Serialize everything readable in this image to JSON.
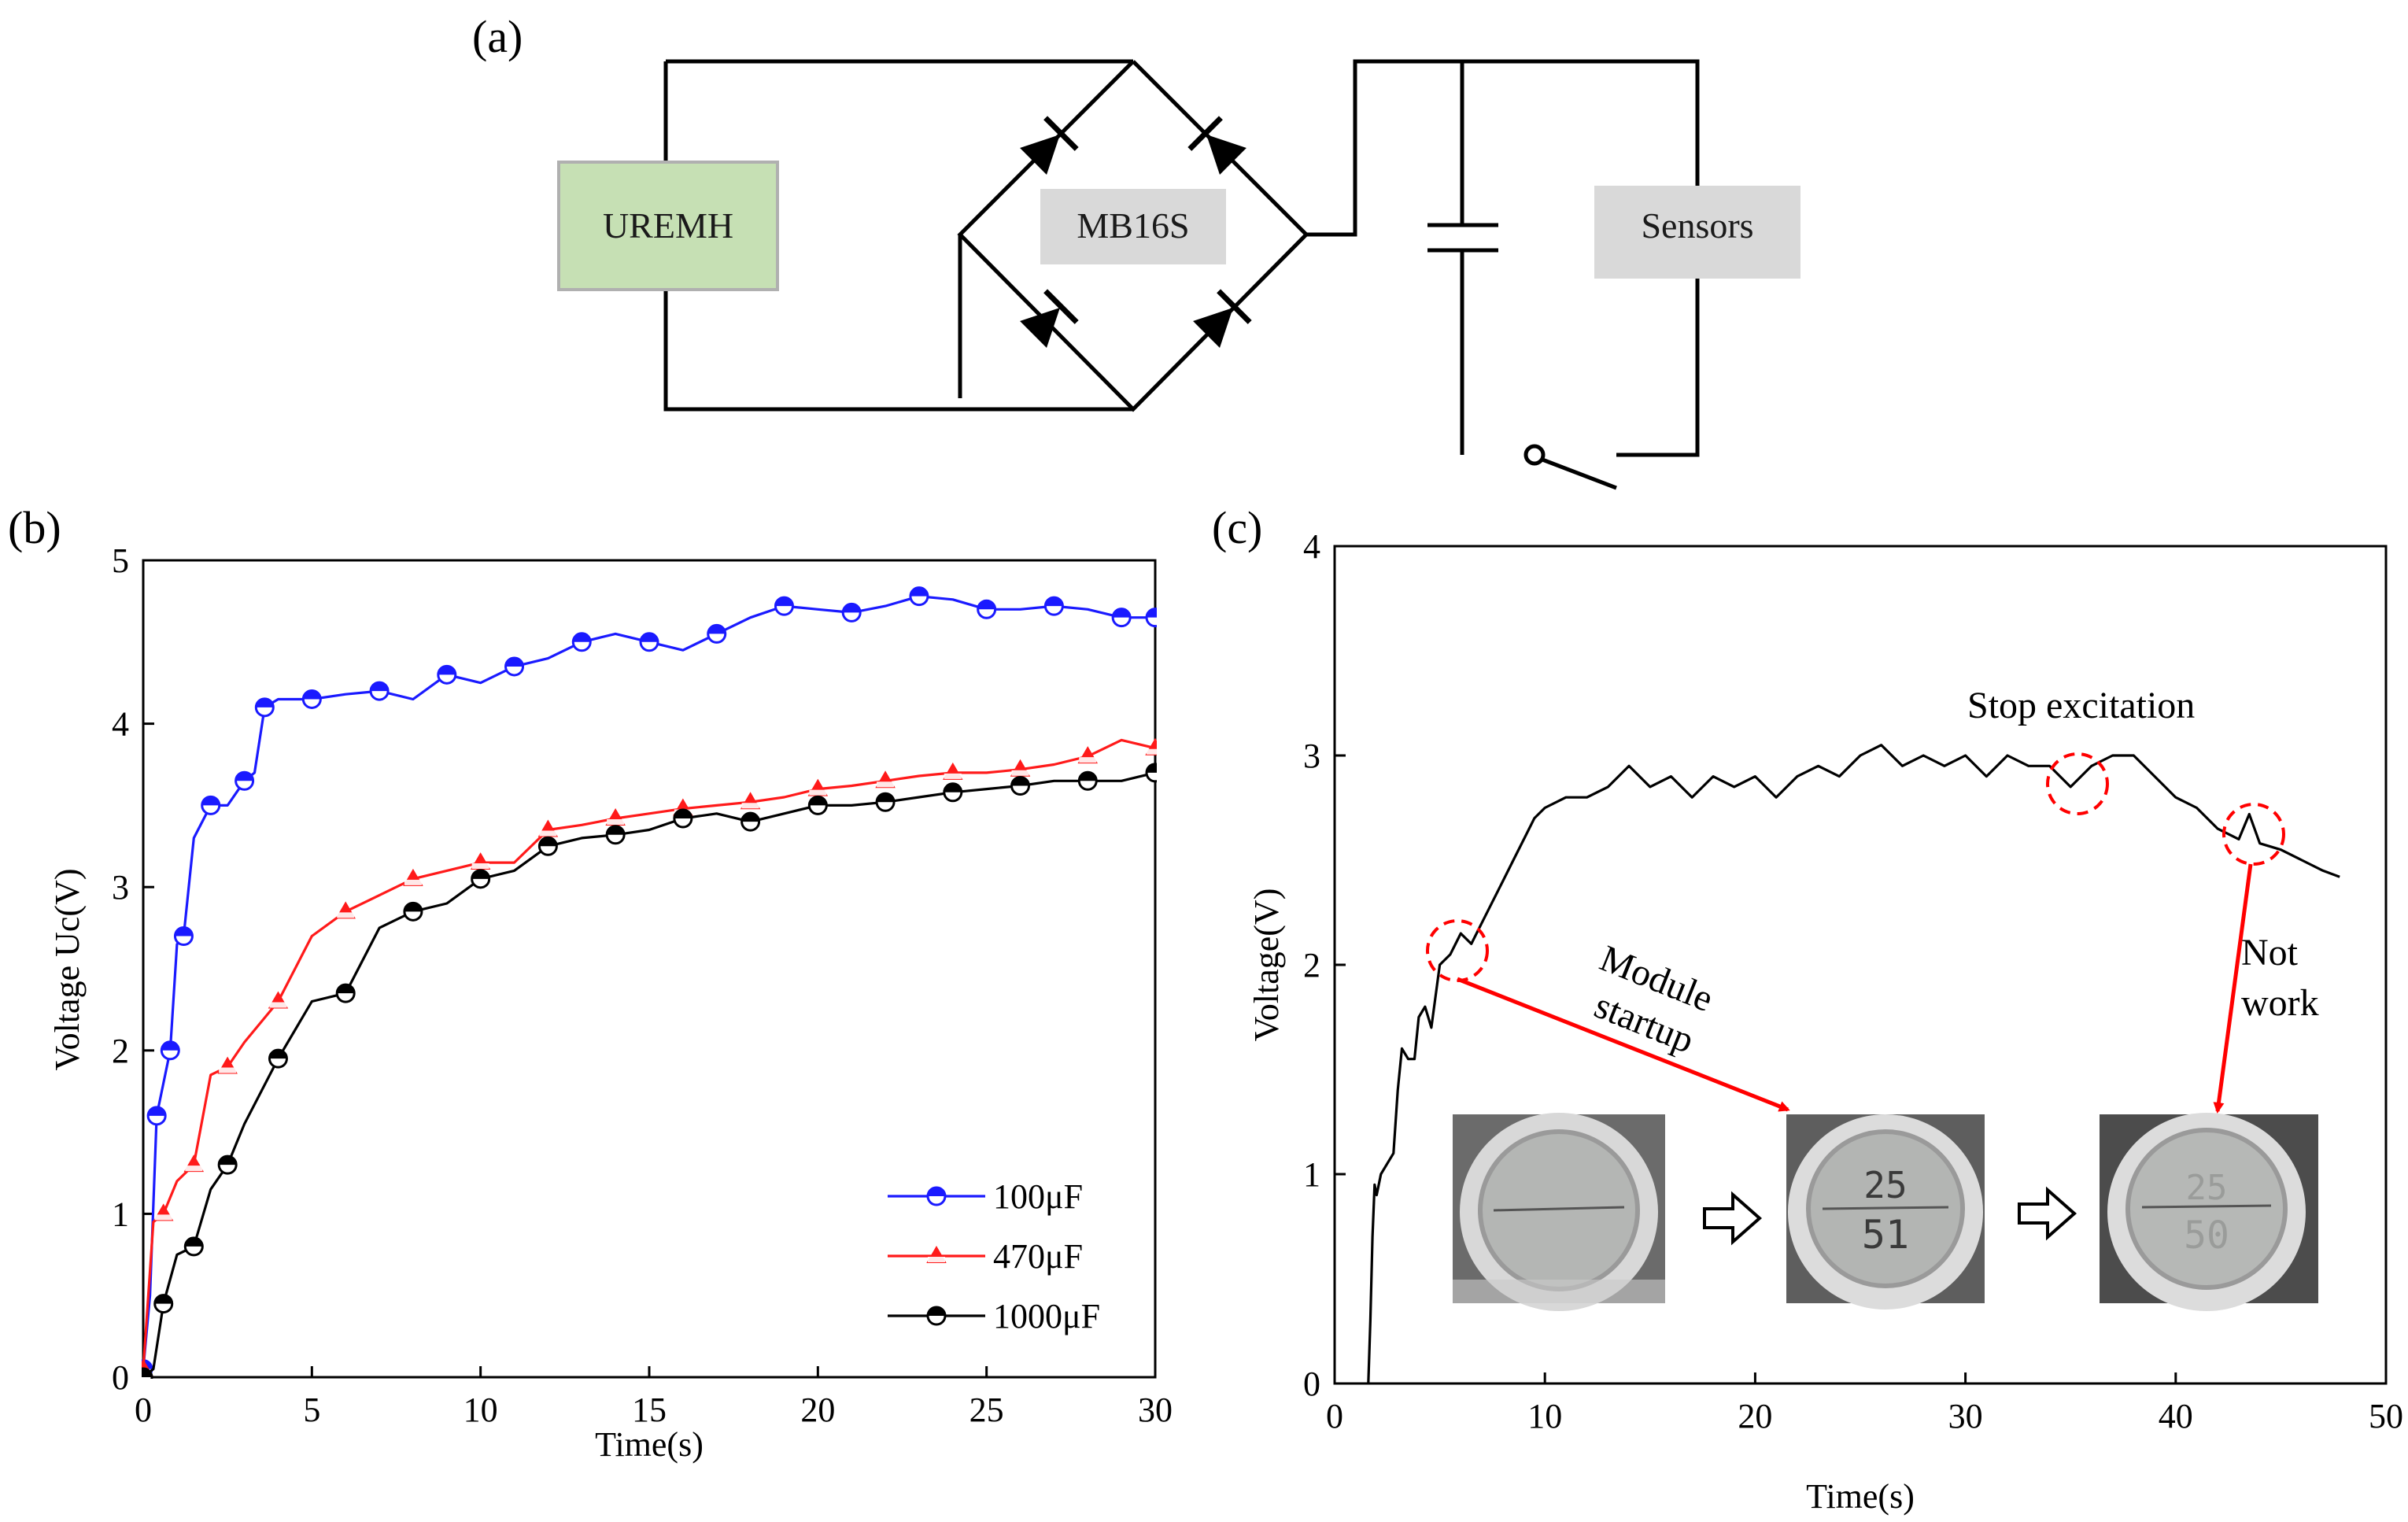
{
  "panels": {
    "a": {
      "label": "(a)",
      "components": {
        "harvester": "UREMH",
        "rectifier": "MB16S",
        "load": "Sensors"
      },
      "colors": {
        "harvester_fill": "#c6e0b4",
        "rectifier_fill": "#d9d9d9",
        "load_fill": "#d9d9d9"
      }
    },
    "b": {
      "label": "(b)"
    },
    "c": {
      "label": "(c)"
    }
  },
  "chart_data": [
    {
      "id": "b",
      "type": "line",
      "xlabel": "Time(s)",
      "ylabel": "Voltage Uc(V)",
      "xlim": [
        0,
        30
      ],
      "ylim": [
        0,
        5
      ],
      "xticks": [
        0,
        5,
        10,
        15,
        20,
        25,
        30
      ],
      "yticks": [
        0,
        1,
        2,
        3,
        4,
        5
      ],
      "grid": false,
      "legend_position": "bottom-right",
      "series": [
        {
          "name": "100μF",
          "color": "#1a1aff",
          "marker": "half-filled-circle",
          "x": [
            0.0,
            0.2,
            0.4,
            0.6,
            0.8,
            1.0,
            1.2,
            1.5,
            2.0,
            2.5,
            3.0,
            3.3,
            3.6,
            4.0,
            5.0,
            6.0,
            7.0,
            8.0,
            9.0,
            10.0,
            11.0,
            12.0,
            13.0,
            14.0,
            15.0,
            16.0,
            17.0,
            18.0,
            19.0,
            20.0,
            21.0,
            22.0,
            23.0,
            24.0,
            25.0,
            26.0,
            27.0,
            28.0,
            29.0,
            30.0
          ],
          "y": [
            0.05,
            0.5,
            1.6,
            1.8,
            2.0,
            2.65,
            2.7,
            3.3,
            3.5,
            3.5,
            3.65,
            3.7,
            4.1,
            4.15,
            4.15,
            4.18,
            4.2,
            4.15,
            4.3,
            4.25,
            4.35,
            4.4,
            4.5,
            4.55,
            4.5,
            4.45,
            4.55,
            4.65,
            4.72,
            4.7,
            4.68,
            4.72,
            4.78,
            4.76,
            4.7,
            4.7,
            4.72,
            4.7,
            4.65,
            4.65
          ]
        },
        {
          "name": "470μF",
          "color": "#ff1a1a",
          "marker": "triangle",
          "x": [
            0.0,
            0.3,
            0.6,
            1.0,
            1.5,
            2.0,
            2.5,
            3.0,
            4.0,
            5.0,
            6.0,
            7.0,
            8.0,
            9.0,
            10.0,
            11.0,
            12.0,
            13.0,
            14.0,
            15.0,
            16.0,
            17.0,
            18.0,
            19.0,
            20.0,
            21.0,
            22.0,
            23.0,
            24.0,
            25.0,
            26.0,
            27.0,
            28.0,
            29.0,
            30.0
          ],
          "y": [
            0.05,
            0.95,
            1.0,
            1.2,
            1.3,
            1.85,
            1.9,
            2.05,
            2.3,
            2.7,
            2.85,
            2.95,
            3.05,
            3.1,
            3.15,
            3.15,
            3.35,
            3.38,
            3.42,
            3.45,
            3.48,
            3.5,
            3.52,
            3.55,
            3.6,
            3.62,
            3.65,
            3.68,
            3.7,
            3.7,
            3.72,
            3.75,
            3.8,
            3.9,
            3.85
          ]
        },
        {
          "name": "1000μF",
          "color": "#000000",
          "marker": "half-filled-circle",
          "x": [
            0.0,
            0.3,
            0.6,
            1.0,
            1.5,
            2.0,
            2.5,
            3.0,
            4.0,
            5.0,
            6.0,
            7.0,
            8.0,
            9.0,
            10.0,
            11.0,
            12.0,
            13.0,
            14.0,
            15.0,
            16.0,
            17.0,
            18.0,
            19.0,
            20.0,
            21.0,
            22.0,
            23.0,
            24.0,
            25.0,
            26.0,
            27.0,
            28.0,
            29.0,
            30.0
          ],
          "y": [
            0.0,
            0.05,
            0.45,
            0.75,
            0.8,
            1.15,
            1.3,
            1.55,
            1.95,
            2.3,
            2.35,
            2.75,
            2.85,
            2.9,
            3.05,
            3.1,
            3.25,
            3.3,
            3.32,
            3.35,
            3.42,
            3.45,
            3.4,
            3.45,
            3.5,
            3.5,
            3.52,
            3.55,
            3.58,
            3.6,
            3.62,
            3.65,
            3.65,
            3.65,
            3.7
          ]
        }
      ]
    },
    {
      "id": "c",
      "type": "line",
      "xlabel": "Time(s)",
      "ylabel": "Voltage(V)",
      "xlim": [
        0,
        50
      ],
      "ylim": [
        0,
        4
      ],
      "xticks": [
        0,
        10,
        20,
        30,
        40,
        50
      ],
      "yticks": [
        0,
        1,
        2,
        3,
        4
      ],
      "grid": false,
      "series": [
        {
          "color": "#000000",
          "x": [
            1.6,
            1.7,
            1.8,
            1.9,
            2.0,
            2.2,
            2.5,
            2.8,
            3.0,
            3.2,
            3.5,
            3.8,
            4.0,
            4.3,
            4.6,
            5.0,
            5.5,
            6.0,
            6.5,
            7.0,
            7.5,
            8.0,
            8.5,
            9.0,
            9.5,
            10.0,
            11.0,
            12.0,
            13.0,
            14.0,
            15.0,
            16.0,
            17.0,
            18.0,
            19.0,
            20.0,
            21.0,
            22.0,
            23.0,
            24.0,
            25.0,
            26.0,
            27.0,
            28.0,
            29.0,
            30.0,
            31.0,
            32.0,
            33.0,
            34.0,
            35.0,
            36.0,
            37.0,
            38.0,
            39.0,
            40.0,
            41.0,
            42.0,
            43.0,
            43.5,
            44.0,
            45.0,
            46.0,
            47.0,
            47.8
          ],
          "y": [
            0.0,
            0.3,
            0.7,
            0.95,
            0.9,
            1.0,
            1.05,
            1.1,
            1.4,
            1.6,
            1.55,
            1.55,
            1.75,
            1.8,
            1.7,
            2.0,
            2.05,
            2.15,
            2.1,
            2.2,
            2.3,
            2.4,
            2.5,
            2.6,
            2.7,
            2.75,
            2.8,
            2.8,
            2.85,
            2.95,
            2.85,
            2.9,
            2.8,
            2.9,
            2.85,
            2.9,
            2.8,
            2.9,
            2.95,
            2.9,
            3.0,
            3.05,
            2.95,
            3.0,
            2.95,
            3.0,
            2.9,
            3.0,
            2.95,
            2.95,
            2.85,
            2.95,
            3.0,
            3.0,
            2.9,
            2.8,
            2.75,
            2.65,
            2.6,
            2.72,
            2.58,
            2.55,
            2.5,
            2.45,
            2.42
          ]
        }
      ],
      "annotations": {
        "stop": "Stop excitation",
        "startup_line1": "Module",
        "startup_line2": "startup",
        "notwork_line1": "Not",
        "notwork_line2": "work"
      },
      "highlight_color": "#ff0000",
      "inset_photos": {
        "photo1": {
          "display": ""
        },
        "photo2": {
          "display_top": "25",
          "display_bottom": "51"
        },
        "photo3": {
          "display_top": "25",
          "display_bottom": "50"
        }
      }
    }
  ]
}
